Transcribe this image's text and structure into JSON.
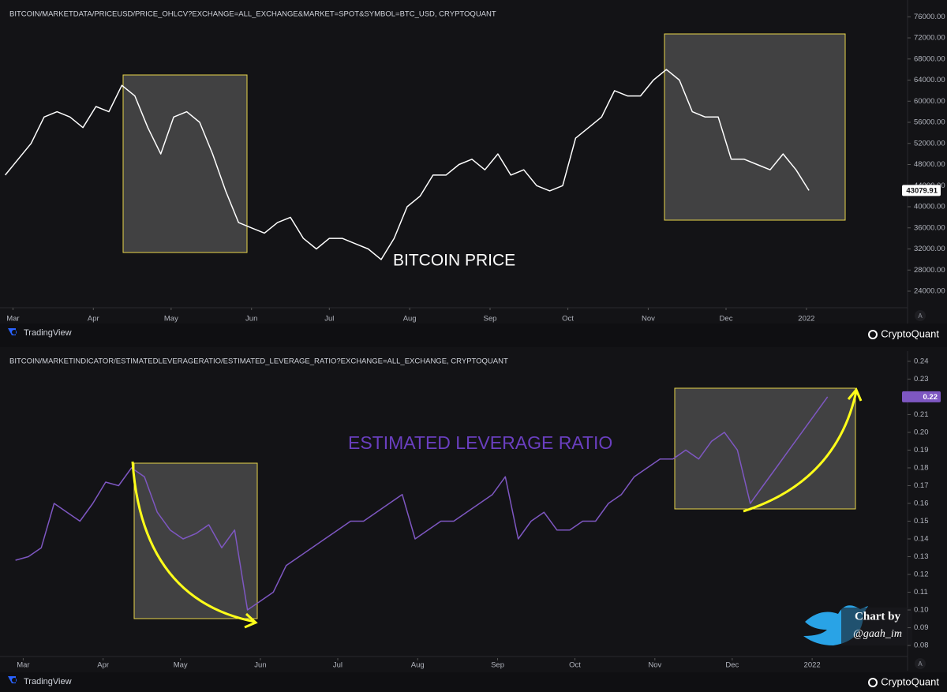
{
  "chart_data": [
    {
      "type": "line",
      "title": "BITCOIN/MARKETDATA/PRICEUSD/PRICE_OHLCV?EXCHANGE=ALL_EXCHANGE&MARKET=SPOT&SYMBOL=BTC_USD, CRYPTOQUANT",
      "annotation": "BITCOIN PRICE",
      "color": "#ffffff",
      "xlim": [
        -2,
        348
      ],
      "ylim": [
        21160,
        79180
      ],
      "grid": false,
      "xticks": [
        {
          "value": 3,
          "label": "Mar"
        },
        {
          "value": 34,
          "label": "Apr"
        },
        {
          "value": 64,
          "label": "May"
        },
        {
          "value": 95,
          "label": "Jun"
        },
        {
          "value": 125,
          "label": "Jul"
        },
        {
          "value": 156,
          "label": "Aug"
        },
        {
          "value": 187,
          "label": "Sep"
        },
        {
          "value": 217,
          "label": "Oct"
        },
        {
          "value": 248,
          "label": "Nov"
        },
        {
          "value": 278,
          "label": "Dec"
        },
        {
          "value": 309,
          "label": "2022"
        }
      ],
      "yticks": [
        {
          "value": 24000,
          "label": "24000.00"
        },
        {
          "value": 28000,
          "label": "28000.00"
        },
        {
          "value": 32000,
          "label": "32000.00"
        },
        {
          "value": 36000,
          "label": "36000.00"
        },
        {
          "value": 40000,
          "label": "40000.00"
        },
        {
          "value": 44000,
          "label": "44000.00"
        },
        {
          "value": 48000,
          "label": "48000.00"
        },
        {
          "value": 52000,
          "label": "52000.00"
        },
        {
          "value": 56000,
          "label": "56000.00"
        },
        {
          "value": 60000,
          "label": "60000.00"
        },
        {
          "value": 64000,
          "label": "64000.00"
        },
        {
          "value": 68000,
          "label": "68000.00"
        },
        {
          "value": 72000,
          "label": "72000.00"
        },
        {
          "value": 76000,
          "label": "76000.00"
        }
      ],
      "x": [
        0,
        5,
        10,
        15,
        20,
        25,
        30,
        35,
        40,
        45,
        50,
        55,
        60,
        65,
        70,
        75,
        80,
        85,
        90,
        95,
        100,
        105,
        110,
        115,
        120,
        125,
        130,
        135,
        140,
        145,
        150,
        155,
        160,
        165,
        170,
        175,
        180,
        185,
        190,
        195,
        200,
        205,
        210,
        215,
        220,
        225,
        230,
        235,
        240,
        245,
        250,
        255,
        260,
        265,
        270,
        275,
        280,
        285,
        290,
        295,
        300,
        305,
        310
      ],
      "values": [
        46000,
        49000,
        52000,
        57000,
        58000,
        57000,
        55000,
        59000,
        58000,
        63000,
        61000,
        55000,
        50000,
        57000,
        58000,
        56000,
        50000,
        43000,
        37000,
        36000,
        35000,
        37000,
        38000,
        34000,
        32000,
        34000,
        34000,
        33000,
        32000,
        30000,
        34000,
        40000,
        42000,
        46000,
        46000,
        48000,
        49000,
        47000,
        50000,
        46000,
        47000,
        44000,
        43000,
        44000,
        53000,
        55000,
        57000,
        62000,
        61000,
        61000,
        64000,
        66000,
        64000,
        58000,
        57000,
        57000,
        49000,
        49000,
        48000,
        47000,
        50000,
        47000,
        43079.91
      ]
    },
    {
      "type": "line",
      "title": "BITCOIN/MARKETINDICATOR/ESTIMATEDLEVERAGERATIO/ESTIMATED_LEVERAGE_RATIO?EXCHANGE=ALL_EXCHANGE, CRYPTOQUANT",
      "annotation": "ESTIMATED LEVERAGE RATIO",
      "color": "#7e57c2",
      "xlim": [
        -6,
        346
      ],
      "ylim": [
        0.0738,
        0.2444
      ],
      "grid": false,
      "xticks": [
        {
          "value": 3,
          "label": "Mar"
        },
        {
          "value": 34,
          "label": "Apr"
        },
        {
          "value": 64,
          "label": "May"
        },
        {
          "value": 95,
          "label": "Jun"
        },
        {
          "value": 125,
          "label": "Jul"
        },
        {
          "value": 156,
          "label": "Aug"
        },
        {
          "value": 187,
          "label": "Sep"
        },
        {
          "value": 217,
          "label": "Oct"
        },
        {
          "value": 248,
          "label": "Nov"
        },
        {
          "value": 278,
          "label": "Dec"
        },
        {
          "value": 309,
          "label": "2022"
        }
      ],
      "yticks": [
        0.08,
        0.09,
        {
          "value": 0.1,
          "label": "0.10"
        },
        0.11,
        0.12,
        0.13,
        0.14,
        0.15,
        0.16,
        0.17,
        0.18,
        0.19,
        {
          "value": 0.2,
          "label": "0.20"
        },
        0.21,
        0.22,
        0.23,
        0.24
      ],
      "x": [
        0,
        5,
        10,
        15,
        20,
        25,
        30,
        35,
        40,
        45,
        50,
        55,
        60,
        65,
        70,
        75,
        80,
        85,
        90,
        95,
        100,
        105,
        110,
        115,
        120,
        125,
        130,
        135,
        140,
        145,
        150,
        155,
        160,
        165,
        170,
        175,
        180,
        185,
        190,
        195,
        200,
        205,
        210,
        215,
        220,
        225,
        230,
        235,
        240,
        245,
        250,
        255,
        260,
        265,
        270,
        275,
        280,
        285,
        290,
        295,
        300,
        305,
        310,
        315
      ],
      "values": [
        0.128,
        0.13,
        0.135,
        0.16,
        0.155,
        0.15,
        0.16,
        0.172,
        0.17,
        0.18,
        0.175,
        0.155,
        0.145,
        0.14,
        0.143,
        0.148,
        0.135,
        0.145,
        0.1,
        0.105,
        0.11,
        0.125,
        0.13,
        0.135,
        0.14,
        0.145,
        0.15,
        0.15,
        0.155,
        0.16,
        0.165,
        0.14,
        0.145,
        0.15,
        0.15,
        0.155,
        0.16,
        0.165,
        0.175,
        0.14,
        0.15,
        0.155,
        0.145,
        0.145,
        0.15,
        0.15,
        0.16,
        0.165,
        0.175,
        0.18,
        0.185,
        0.185,
        0.19,
        0.185,
        0.195,
        0.2,
        0.19,
        0.16,
        0.17,
        0.18,
        0.19,
        0.2,
        0.21,
        0.22
      ]
    }
  ],
  "footer": {
    "brand_left": "TradingView",
    "brand_right": "CryptoQuant",
    "scale_button": "A"
  },
  "watermark": {
    "line1": "Chart by",
    "line2": "@gaah_im"
  }
}
